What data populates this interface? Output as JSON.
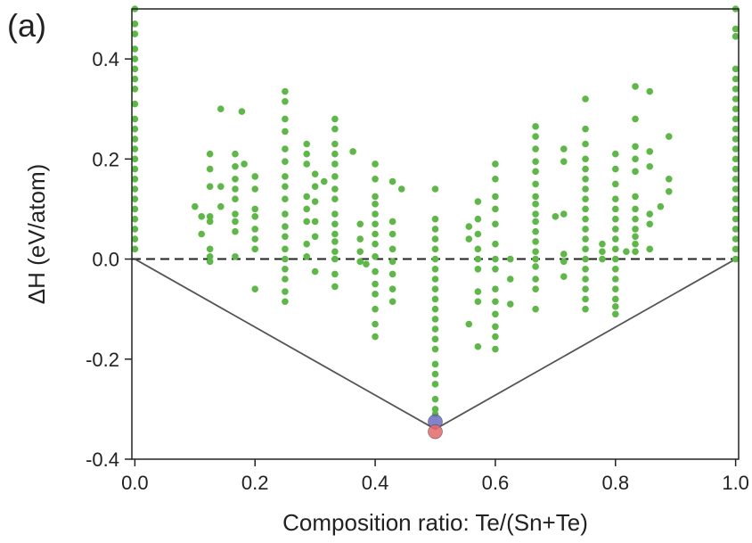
{
  "panel_label": "(a)",
  "chart_data": {
    "type": "scatter",
    "xlabel": "Composition ratio: Te/(Sn+Te)",
    "ylabel": "ΔH (eV/atom)",
    "xlim": [
      -0.005,
      1.005
    ],
    "ylim": [
      -0.4,
      0.5
    ],
    "xticks": [
      0.0,
      0.2,
      0.4,
      0.6,
      0.8,
      1.0
    ],
    "xtick_labels": [
      "0.0",
      "0.2",
      "0.4",
      "0.6",
      "0.8",
      "1.0"
    ],
    "yticks": [
      -0.4,
      -0.2,
      0.0,
      0.2,
      0.4
    ],
    "ytick_labels": [
      "-0.4",
      "-0.2",
      "0.0",
      "0.2",
      "0.4"
    ],
    "reference_line": {
      "y": 0.0,
      "style": "dashed"
    },
    "convex_hull": {
      "x": [
        0.0,
        0.5,
        1.0
      ],
      "y": [
        0.0,
        -0.34,
        0.0
      ]
    },
    "colors": {
      "structures": "#5cb946",
      "blue_marker": "#6b6fc4",
      "red_marker": "#e46868",
      "hull": "#555555"
    },
    "series": [
      {
        "points": [
          [
            0.0,
            0.5
          ],
          [
            0.0,
            0.47
          ],
          [
            0.0,
            0.45
          ],
          [
            0.0,
            0.42
          ],
          [
            0.0,
            0.4
          ],
          [
            0.0,
            0.38
          ],
          [
            0.0,
            0.36
          ],
          [
            0.0,
            0.34
          ],
          [
            0.0,
            0.31
          ],
          [
            0.0,
            0.28
          ],
          [
            0.0,
            0.26
          ],
          [
            0.0,
            0.24
          ],
          [
            0.0,
            0.22
          ],
          [
            0.0,
            0.2
          ],
          [
            0.0,
            0.18
          ],
          [
            0.0,
            0.16
          ],
          [
            0.0,
            0.14
          ],
          [
            0.0,
            0.12
          ],
          [
            0.0,
            0.1
          ],
          [
            0.0,
            0.08
          ],
          [
            0.0,
            0.06
          ],
          [
            0.0,
            0.04
          ],
          [
            0.0,
            0.02
          ],
          [
            0.1,
            0.105
          ],
          [
            0.111,
            0.085
          ],
          [
            0.111,
            0.05
          ],
          [
            0.125,
            0.21
          ],
          [
            0.125,
            0.18
          ],
          [
            0.125,
            0.145
          ],
          [
            0.125,
            0.085
          ],
          [
            0.125,
            0.075
          ],
          [
            0.125,
            0.02
          ],
          [
            0.125,
            0.005
          ],
          [
            0.125,
            -0.005
          ],
          [
            0.143,
            0.3
          ],
          [
            0.143,
            0.145
          ],
          [
            0.143,
            0.105
          ],
          [
            0.167,
            0.21
          ],
          [
            0.167,
            0.185
          ],
          [
            0.167,
            0.16
          ],
          [
            0.167,
            0.14
          ],
          [
            0.167,
            0.12
          ],
          [
            0.167,
            0.09
          ],
          [
            0.167,
            0.075
          ],
          [
            0.167,
            0.055
          ],
          [
            0.167,
            0.005
          ],
          [
            0.178,
            0.295
          ],
          [
            0.182,
            0.19
          ],
          [
            0.2,
            0.165
          ],
          [
            0.2,
            0.14
          ],
          [
            0.2,
            0.1
          ],
          [
            0.2,
            0.085
          ],
          [
            0.2,
            0.06
          ],
          [
            0.2,
            0.04
          ],
          [
            0.2,
            0.02
          ],
          [
            0.2,
            -0.06
          ],
          [
            0.25,
            0.335
          ],
          [
            0.25,
            0.315
          ],
          [
            0.25,
            0.28
          ],
          [
            0.25,
            0.255
          ],
          [
            0.25,
            0.22
          ],
          [
            0.25,
            0.195
          ],
          [
            0.25,
            0.165
          ],
          [
            0.25,
            0.145
          ],
          [
            0.25,
            0.12
          ],
          [
            0.25,
            0.09
          ],
          [
            0.25,
            0.065
          ],
          [
            0.25,
            0.045
          ],
          [
            0.25,
            0.02
          ],
          [
            0.25,
            0.0
          ],
          [
            0.25,
            -0.02
          ],
          [
            0.25,
            -0.04
          ],
          [
            0.25,
            -0.065
          ],
          [
            0.25,
            -0.085
          ],
          [
            0.286,
            0.23
          ],
          [
            0.286,
            0.21
          ],
          [
            0.286,
            0.19
          ],
          [
            0.286,
            0.125
          ],
          [
            0.286,
            0.1
          ],
          [
            0.286,
            0.075
          ],
          [
            0.286,
            0.03
          ],
          [
            0.286,
            0.005
          ],
          [
            0.3,
            0.17
          ],
          [
            0.3,
            0.145
          ],
          [
            0.3,
            0.115
          ],
          [
            0.3,
            0.075
          ],
          [
            0.3,
            0.045
          ],
          [
            0.3,
            -0.025
          ],
          [
            0.315,
            0.155
          ],
          [
            0.333,
            0.28
          ],
          [
            0.333,
            0.26
          ],
          [
            0.333,
            0.23
          ],
          [
            0.333,
            0.21
          ],
          [
            0.333,
            0.19
          ],
          [
            0.333,
            0.165
          ],
          [
            0.333,
            0.14
          ],
          [
            0.333,
            0.12
          ],
          [
            0.333,
            0.09
          ],
          [
            0.333,
            0.07
          ],
          [
            0.333,
            0.05
          ],
          [
            0.333,
            0.035
          ],
          [
            0.333,
            0.015
          ],
          [
            0.333,
            0.0
          ],
          [
            0.333,
            -0.03
          ],
          [
            0.333,
            -0.055
          ],
          [
            0.363,
            0.215
          ],
          [
            0.375,
            0.07
          ],
          [
            0.375,
            0.04
          ],
          [
            0.375,
            0.015
          ],
          [
            0.375,
            -0.005
          ],
          [
            0.385,
            -0.01
          ],
          [
            0.4,
            0.19
          ],
          [
            0.4,
            0.16
          ],
          [
            0.4,
            0.125
          ],
          [
            0.4,
            0.11
          ],
          [
            0.4,
            0.09
          ],
          [
            0.4,
            0.07
          ],
          [
            0.4,
            0.05
          ],
          [
            0.4,
            0.03
          ],
          [
            0.4,
            0.005
          ],
          [
            0.4,
            -0.025
          ],
          [
            0.4,
            -0.05
          ],
          [
            0.4,
            -0.07
          ],
          [
            0.4,
            -0.1
          ],
          [
            0.4,
            -0.13
          ],
          [
            0.4,
            -0.155
          ],
          [
            0.429,
            0.155
          ],
          [
            0.429,
            0.075
          ],
          [
            0.429,
            0.05
          ],
          [
            0.429,
            0.02
          ],
          [
            0.429,
            -0.005
          ],
          [
            0.429,
            -0.03
          ],
          [
            0.429,
            -0.06
          ],
          [
            0.429,
            -0.085
          ],
          [
            0.444,
            0.14
          ],
          [
            0.5,
            0.14
          ],
          [
            0.5,
            0.08
          ],
          [
            0.5,
            0.06
          ],
          [
            0.5,
            0.04
          ],
          [
            0.5,
            0.02
          ],
          [
            0.5,
            0.0
          ],
          [
            0.5,
            -0.02
          ],
          [
            0.5,
            -0.04
          ],
          [
            0.5,
            -0.06
          ],
          [
            0.5,
            -0.08
          ],
          [
            0.5,
            -0.1
          ],
          [
            0.5,
            -0.12
          ],
          [
            0.5,
            -0.14
          ],
          [
            0.5,
            -0.16
          ],
          [
            0.5,
            -0.18
          ],
          [
            0.5,
            -0.21
          ],
          [
            0.5,
            -0.23
          ],
          [
            0.5,
            -0.25
          ],
          [
            0.5,
            -0.28
          ],
          [
            0.5,
            -0.3
          ],
          [
            0.5,
            -0.31
          ],
          [
            0.556,
            0.065
          ],
          [
            0.556,
            0.04
          ],
          [
            0.556,
            -0.13
          ],
          [
            0.571,
            0.115
          ],
          [
            0.571,
            0.08
          ],
          [
            0.571,
            0.05
          ],
          [
            0.571,
            0.02
          ],
          [
            0.571,
            0.0
          ],
          [
            0.571,
            -0.02
          ],
          [
            0.571,
            -0.065
          ],
          [
            0.571,
            -0.085
          ],
          [
            0.571,
            -0.175
          ],
          [
            0.6,
            0.19
          ],
          [
            0.6,
            0.16
          ],
          [
            0.6,
            0.125
          ],
          [
            0.6,
            0.1
          ],
          [
            0.6,
            0.07
          ],
          [
            0.6,
            0.03
          ],
          [
            0.6,
            0.0
          ],
          [
            0.6,
            -0.02
          ],
          [
            0.6,
            -0.06
          ],
          [
            0.6,
            -0.085
          ],
          [
            0.6,
            -0.11
          ],
          [
            0.6,
            -0.135
          ],
          [
            0.6,
            -0.155
          ],
          [
            0.6,
            -0.18
          ],
          [
            0.625,
            -0.04
          ],
          [
            0.625,
            -0.09
          ],
          [
            0.625,
            0.0
          ],
          [
            0.667,
            0.265
          ],
          [
            0.667,
            0.245
          ],
          [
            0.667,
            0.22
          ],
          [
            0.667,
            0.195
          ],
          [
            0.667,
            0.175
          ],
          [
            0.667,
            0.15
          ],
          [
            0.667,
            0.125
          ],
          [
            0.667,
            0.11
          ],
          [
            0.667,
            0.09
          ],
          [
            0.667,
            0.075
          ],
          [
            0.667,
            0.055
          ],
          [
            0.667,
            0.035
          ],
          [
            0.667,
            0.015
          ],
          [
            0.667,
            0.0
          ],
          [
            0.667,
            -0.015
          ],
          [
            0.667,
            -0.04
          ],
          [
            0.667,
            -0.06
          ],
          [
            0.667,
            -0.1
          ],
          [
            0.7,
            0.085
          ],
          [
            0.714,
            0.22
          ],
          [
            0.714,
            0.195
          ],
          [
            0.714,
            0.09
          ],
          [
            0.714,
            0.01
          ],
          [
            0.714,
            -0.005
          ],
          [
            0.714,
            -0.035
          ],
          [
            0.75,
            0.32
          ],
          [
            0.75,
            0.26
          ],
          [
            0.75,
            0.23
          ],
          [
            0.75,
            0.2
          ],
          [
            0.75,
            0.18
          ],
          [
            0.75,
            0.16
          ],
          [
            0.75,
            0.14
          ],
          [
            0.75,
            0.12
          ],
          [
            0.75,
            0.1
          ],
          [
            0.75,
            0.08
          ],
          [
            0.75,
            0.06
          ],
          [
            0.75,
            0.04
          ],
          [
            0.75,
            0.02
          ],
          [
            0.75,
            0.0
          ],
          [
            0.75,
            -0.02
          ],
          [
            0.75,
            -0.04
          ],
          [
            0.75,
            -0.06
          ],
          [
            0.75,
            -0.08
          ],
          [
            0.75,
            -0.1
          ],
          [
            0.778,
            0.03
          ],
          [
            0.778,
            0.015
          ],
          [
            0.778,
            0.0
          ],
          [
            0.8,
            0.21
          ],
          [
            0.8,
            0.18
          ],
          [
            0.8,
            0.15
          ],
          [
            0.8,
            0.12
          ],
          [
            0.8,
            0.1
          ],
          [
            0.8,
            0.08
          ],
          [
            0.8,
            0.06
          ],
          [
            0.8,
            0.04
          ],
          [
            0.8,
            0.02
          ],
          [
            0.8,
            0.0
          ],
          [
            0.8,
            -0.02
          ],
          [
            0.8,
            -0.04
          ],
          [
            0.8,
            -0.06
          ],
          [
            0.8,
            -0.08
          ],
          [
            0.8,
            -0.095
          ],
          [
            0.8,
            -0.11
          ],
          [
            0.818,
            0.015
          ],
          [
            0.833,
            0.345
          ],
          [
            0.833,
            0.28
          ],
          [
            0.833,
            0.225
          ],
          [
            0.833,
            0.2
          ],
          [
            0.833,
            0.175
          ],
          [
            0.833,
            0.125
          ],
          [
            0.833,
            0.1
          ],
          [
            0.833,
            0.08
          ],
          [
            0.833,
            0.06
          ],
          [
            0.833,
            0.045
          ],
          [
            0.833,
            0.03
          ],
          [
            0.833,
            0.015
          ],
          [
            0.857,
            0.335
          ],
          [
            0.857,
            0.215
          ],
          [
            0.857,
            0.185
          ],
          [
            0.857,
            0.09
          ],
          [
            0.857,
            0.07
          ],
          [
            0.857,
            0.02
          ],
          [
            0.875,
            0.105
          ],
          [
            0.889,
            0.245
          ],
          [
            0.889,
            0.16
          ],
          [
            0.889,
            0.135
          ],
          [
            1.0,
            0.5
          ],
          [
            1.0,
            0.46
          ],
          [
            1.0,
            0.445
          ],
          [
            1.0,
            0.38
          ],
          [
            1.0,
            0.36
          ],
          [
            1.0,
            0.34
          ],
          [
            1.0,
            0.32
          ],
          [
            1.0,
            0.3
          ],
          [
            1.0,
            0.28
          ],
          [
            1.0,
            0.26
          ],
          [
            1.0,
            0.24
          ],
          [
            1.0,
            0.22
          ],
          [
            1.0,
            0.2
          ],
          [
            1.0,
            0.18
          ],
          [
            1.0,
            0.16
          ],
          [
            1.0,
            0.14
          ],
          [
            1.0,
            0.12
          ],
          [
            1.0,
            0.1
          ],
          [
            1.0,
            0.08
          ],
          [
            1.0,
            0.06
          ],
          [
            1.0,
            0.04
          ],
          [
            1.0,
            0.02
          ],
          [
            1.0,
            0.0
          ]
        ]
      }
    ],
    "highlighted_points": [
      {
        "x": 0.5,
        "y": -0.325,
        "color": "blue"
      },
      {
        "x": 0.5,
        "y": -0.345,
        "color": "red"
      }
    ]
  }
}
